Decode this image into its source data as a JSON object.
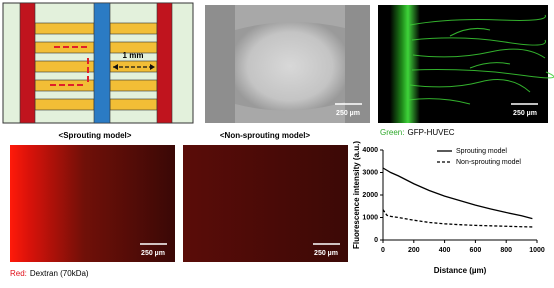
{
  "panels": {
    "schematic_label": "1 mm",
    "scale_bars": [
      "250 µm",
      "250 µm",
      "250 µm",
      "250 µm"
    ],
    "sprouting_label": "<Sprouting model>",
    "non_sprouting_label": "<Non-sprouting model>",
    "green_caption": {
      "prefix": "Green:",
      "text": "GFP-HUVEC"
    },
    "red_caption": {
      "prefix": "Red:",
      "text": "Dextran (70kDa)"
    }
  },
  "chart_data": {
    "type": "line",
    "xlabel": "Distance (µm)",
    "ylabel": "Fluorescence intensity (a.u.)",
    "x": [
      0,
      25,
      50,
      100,
      200,
      300,
      400,
      500,
      600,
      700,
      800,
      900,
      970
    ],
    "series": [
      {
        "name": "Sprouting model",
        "color": "#000000",
        "dash": false,
        "values": [
          3200,
          3100,
          3000,
          2850,
          2500,
          2200,
          1950,
          1750,
          1550,
          1380,
          1220,
          1080,
          950
        ]
      },
      {
        "name": "Non-sprouting model",
        "color": "#000000",
        "dash": true,
        "values": [
          1350,
          1100,
          1050,
          1000,
          880,
          780,
          720,
          680,
          650,
          630,
          610,
          590,
          580
        ]
      }
    ],
    "xlim": [
      0,
      1000
    ],
    "xticks": [
      0,
      200,
      400,
      600,
      800,
      1000
    ],
    "ylim": [
      0,
      4000
    ],
    "yticks": [
      0,
      1000,
      2000,
      3000,
      4000
    ],
    "legend": "upper right"
  }
}
